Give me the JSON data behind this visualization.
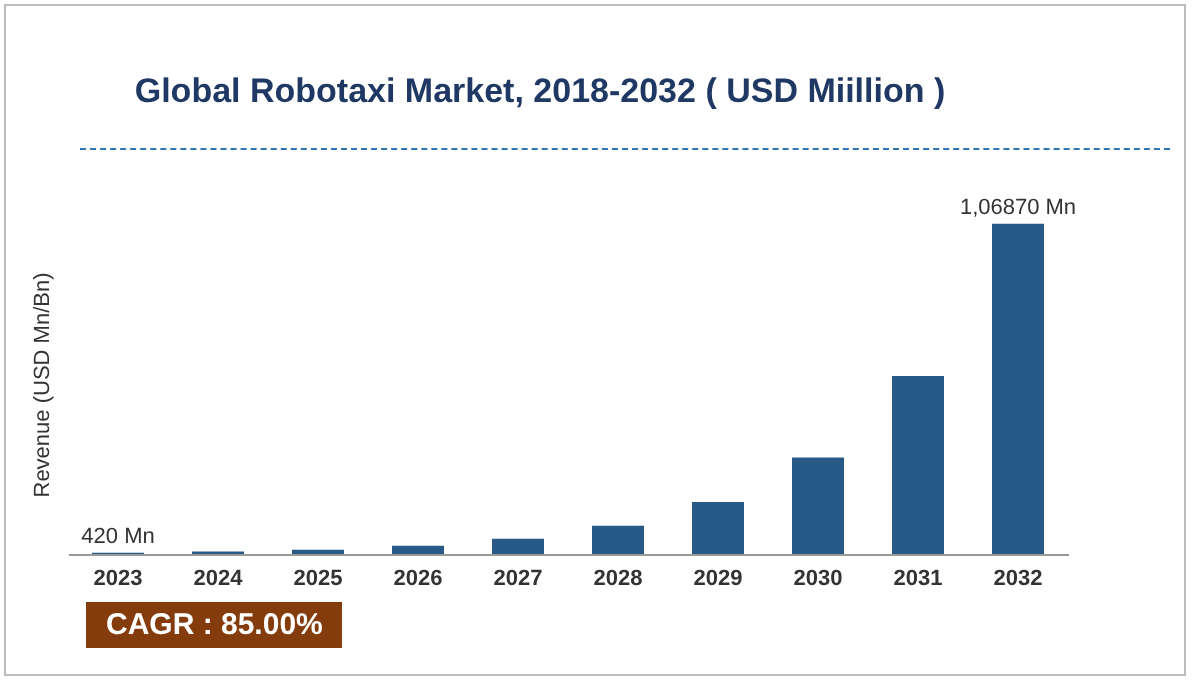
{
  "chart_data": {
    "type": "bar",
    "title": "Global Robotaxi Market, 2018-2032 ( USD Miillion )",
    "ylabel": "Revenue (USD Mn/Bn)",
    "categories": [
      "2023",
      "2024",
      "2025",
      "2026",
      "2027",
      "2028",
      "2029",
      "2030",
      "2031",
      "2032"
    ],
    "values": [
      420,
      800,
      1400,
      2700,
      4900,
      9100,
      16800,
      31200,
      57600,
      106870
    ],
    "value_labels": [
      "420 Mn",
      null,
      null,
      null,
      null,
      null,
      null,
      null,
      null,
      "1,06870 Mn"
    ],
    "color": "#285a88",
    "annotations": [
      "CAGR : 85.00%"
    ]
  }
}
